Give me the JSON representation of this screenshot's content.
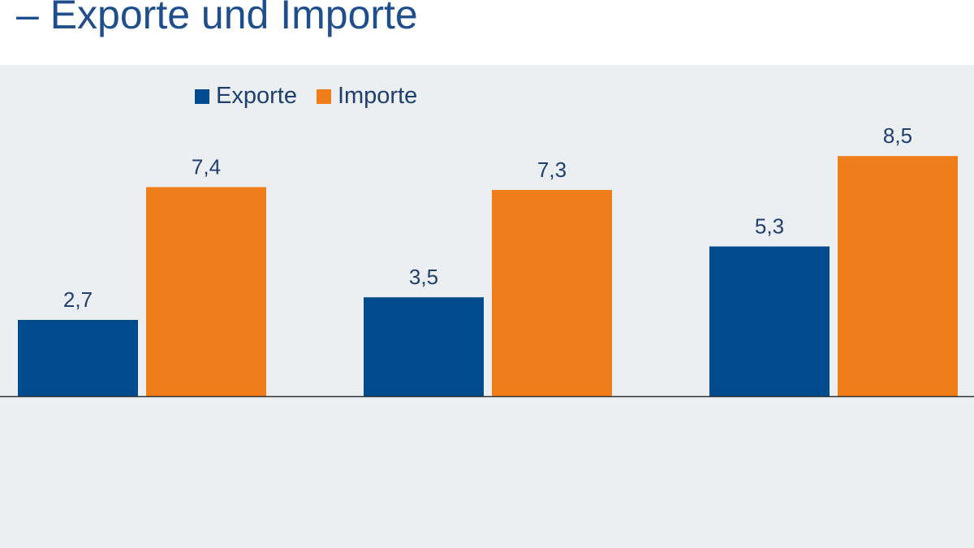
{
  "page": {
    "title": "– Exporte und Importe"
  },
  "colors": {
    "exporte": "#004b8d",
    "importe": "#ee7d1a",
    "axis": "#333333"
  },
  "chart_data": {
    "type": "bar",
    "categories": [
      "",
      "",
      ""
    ],
    "series": [
      {
        "name": "Exporte",
        "values": [
          2.7,
          3.5,
          5.3
        ],
        "labels": [
          "2,7",
          "3,5",
          "5,3"
        ]
      },
      {
        "name": "Importe",
        "values": [
          7.4,
          7.3,
          8.5
        ],
        "labels": [
          "7,4",
          "7,3",
          "8,5"
        ]
      }
    ],
    "ylim": [
      0,
      9
    ],
    "grid": false,
    "legend": "top-left"
  }
}
